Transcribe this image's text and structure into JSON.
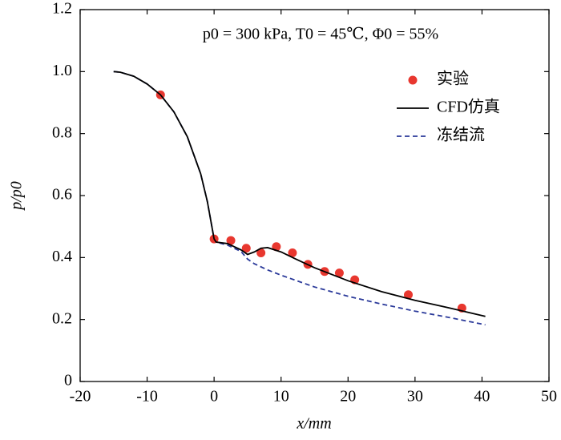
{
  "chart_data": {
    "type": "line",
    "annotation": "p0 = 300 kPa, T0 = 45℃, Φ0 = 55%",
    "xlabel": "x/mm",
    "ylabel": "p/p0",
    "xlim": [
      -20,
      50
    ],
    "xticks": [
      -20,
      -10,
      0,
      10,
      20,
      30,
      40,
      50
    ],
    "ylim": [
      0,
      1.2
    ],
    "yticks": [
      0,
      {
        "value": 0.2,
        "label": "0.2"
      },
      {
        "value": 0.4,
        "label": "0.4"
      },
      {
        "value": 0.6,
        "label": "0.6"
      },
      {
        "value": 0.8,
        "label": "0.8"
      },
      {
        "value": 1.0,
        "label": "1.0"
      },
      {
        "value": 1.2,
        "label": "1.2"
      }
    ],
    "legend": "upper right",
    "series": [
      {
        "name": "实验",
        "color": "#e8372f",
        "style": "marker",
        "x": [
          -8,
          0,
          2.5,
          4.8,
          7,
          9.3,
          11.7,
          14,
          16.5,
          18.7,
          21,
          29,
          37
        ],
        "values": [
          0.925,
          0.46,
          0.455,
          0.43,
          0.415,
          0.435,
          0.415,
          0.378,
          0.355,
          0.35,
          0.328,
          0.28,
          0.237
        ]
      },
      {
        "name": "CFD仿真",
        "color": "#000000",
        "style": "solid",
        "x": [
          -15,
          -14,
          -12,
          -10,
          -8,
          -6,
          -4,
          -2,
          -1,
          0,
          0.3,
          2,
          4,
          5,
          6,
          7,
          8,
          10,
          12,
          15,
          20,
          25,
          30,
          35,
          40.5
        ],
        "values": [
          1.0,
          0.998,
          0.985,
          0.96,
          0.925,
          0.87,
          0.79,
          0.67,
          0.58,
          0.46,
          0.45,
          0.445,
          0.425,
          0.41,
          0.418,
          0.43,
          0.432,
          0.418,
          0.397,
          0.367,
          0.325,
          0.29,
          0.262,
          0.238,
          0.21
        ]
      },
      {
        "name": "冻结流",
        "color": "#2b3a9a",
        "style": "dashed",
        "x": [
          -15,
          -14,
          -12,
          -10,
          -8,
          -6,
          -4,
          -2,
          -1,
          0,
          0.3,
          2,
          4,
          5,
          6,
          8,
          10,
          15,
          20,
          25,
          30,
          35,
          40.5
        ],
        "values": [
          1.0,
          0.998,
          0.985,
          0.96,
          0.925,
          0.87,
          0.79,
          0.67,
          0.58,
          0.46,
          0.45,
          0.44,
          0.42,
          0.395,
          0.38,
          0.36,
          0.343,
          0.305,
          0.275,
          0.25,
          0.227,
          0.207,
          0.183
        ]
      }
    ]
  }
}
